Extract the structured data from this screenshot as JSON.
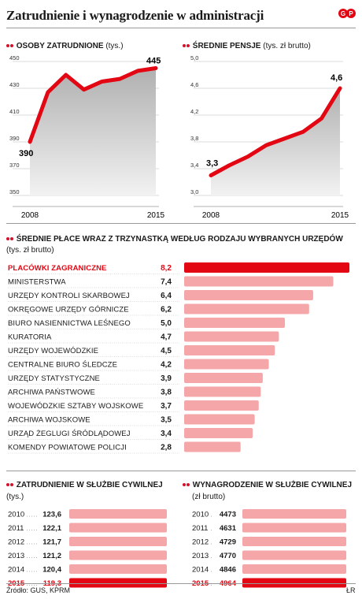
{
  "title": "Zatrudnienie i wynagrodzenie w administracji",
  "source": "Źródło: GUS, KPRM",
  "author": "ŁR",
  "colors": {
    "accent": "#e30613",
    "bar": "#f4a6a8",
    "area_top": "#b0b0b0",
    "area_bottom": "#f2f2f2"
  },
  "chart_data": [
    {
      "type": "area",
      "title": "Osoby zatrudnione",
      "unit": "(tys.)",
      "x": [
        "2008",
        "2009",
        "2010",
        "2011",
        "2012",
        "2013",
        "2014",
        "2015"
      ],
      "values": [
        390,
        427,
        440,
        429,
        435,
        437,
        443,
        445
      ],
      "data_labels": {
        "first": "390",
        "last": "445"
      },
      "x_ticks": [
        "2008",
        "2015"
      ],
      "y_ticks": [
        "450",
        "430",
        "410",
        "390",
        "370",
        "350"
      ],
      "ylim": [
        350,
        450
      ],
      "grid": true
    },
    {
      "type": "area",
      "title": "Średnie pensje",
      "unit": "(tys. zł brutto)",
      "x": [
        "2008",
        "2009",
        "2010",
        "2011",
        "2012",
        "2013",
        "2014",
        "2015"
      ],
      "values": [
        3.3,
        3.45,
        3.58,
        3.75,
        3.85,
        3.95,
        4.15,
        4.6
      ],
      "data_labels": {
        "first": "3,3",
        "last": "4,6"
      },
      "x_ticks": [
        "2008",
        "2015"
      ],
      "y_ticks": [
        "5,0",
        "4,6",
        "4,2",
        "3,8",
        "3,4",
        "3,0"
      ],
      "ylim": [
        3.0,
        5.0
      ],
      "grid": true
    },
    {
      "type": "bar",
      "title": "Średnie płace wraz z trzynastką według rodzaju wybranych urzędów",
      "unit": "(tys. zł brutto)",
      "categories": [
        "Placówki zagraniczne",
        "Ministerstwa",
        "Urzędy kontroli skarbowej",
        "Okręgowe urzędy górnicze",
        "Biuro Nasiennictwa Leśnego",
        "Kuratoria",
        "Urzędy wojewódzkie",
        "Centralne Biuro Śledcze",
        "Urzędy statystyczne",
        "Archiwa państwowe",
        "Wojewódzkie sztaby wojskowe",
        "Archiwa wojskowe",
        "Urząd żeglugi śródlądowej",
        "Komendy powiatowe policji"
      ],
      "labels": [
        "8,2",
        "7,4",
        "6,4",
        "6,2",
        "5,0",
        "4,7",
        "4,5",
        "4,2",
        "3,9",
        "3,8",
        "3,7",
        "3,5",
        "3,4",
        "2,8"
      ],
      "values": [
        8.2,
        7.4,
        6.4,
        6.2,
        5.0,
        4.7,
        4.5,
        4.2,
        3.9,
        3.8,
        3.7,
        3.5,
        3.4,
        2.8
      ],
      "highlight_index": 0
    },
    {
      "type": "bar",
      "title": "Zatrudnienie w służbie cywilnej",
      "unit": "(tys.)",
      "categories": [
        "2010",
        "2011",
        "2012",
        "2013",
        "2014",
        "2015"
      ],
      "labels": [
        "123,6",
        "122,1",
        "121,7",
        "121,2",
        "120,4",
        "119,3"
      ],
      "values": [
        123.6,
        122.1,
        121.7,
        121.2,
        120.4,
        119.3
      ],
      "highlight_index": 5
    },
    {
      "type": "bar",
      "title": "Wynagrodzenie w służbie cywilnej",
      "unit": "(zł brutto)",
      "categories": [
        "2010",
        "2011",
        "2012",
        "2013",
        "2014",
        "2015"
      ],
      "labels": [
        "4473",
        "4631",
        "4729",
        "4770",
        "4846",
        "4964"
      ],
      "values": [
        4473,
        4631,
        4729,
        4770,
        4846,
        4964
      ],
      "highlight_index": 5
    }
  ]
}
